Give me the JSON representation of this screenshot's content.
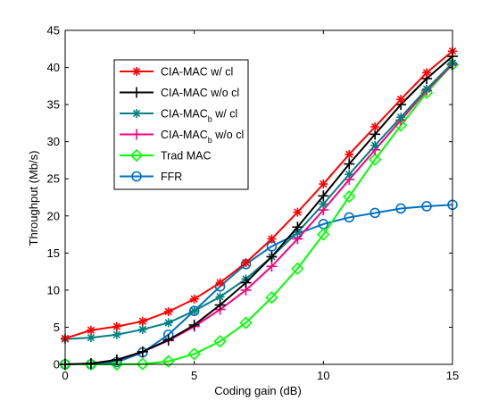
{
  "chart_data": {
    "type": "line",
    "title": "",
    "xlabel": "Coding gain (dB)",
    "ylabel": "Throughput (Mb/s)",
    "xlim": [
      0,
      15
    ],
    "ylim": [
      0,
      45
    ],
    "xticks": [
      0,
      5,
      10,
      15
    ],
    "yticks": [
      0,
      5,
      10,
      15,
      20,
      25,
      30,
      35,
      40,
      45
    ],
    "xtick_labels": [
      "0",
      "5",
      "10",
      "15"
    ],
    "ytick_labels": [
      "0",
      "5",
      "10",
      "15",
      "20",
      "25",
      "30",
      "35",
      "40",
      "45"
    ],
    "grid": false,
    "legend_position": "upper-left",
    "x": [
      0,
      1,
      2,
      3,
      4,
      5,
      6,
      7,
      8,
      9,
      10,
      11,
      12,
      13,
      14,
      15
    ],
    "series": [
      {
        "name": "CIA-MAC w/ cl",
        "legend_parts": [
          {
            "t": "CIA-MAC w/ cl"
          }
        ],
        "color": "#ff0000",
        "marker": "asterisk",
        "values": [
          3.5,
          4.6,
          5.1,
          5.8,
          7.1,
          8.8,
          11.0,
          13.7,
          16.9,
          20.5,
          24.3,
          28.3,
          32.0,
          35.7,
          39.3,
          42.2
        ]
      },
      {
        "name": "CIA-MAC w/o cl",
        "legend_parts": [
          {
            "t": "CIA-MAC w/o cl"
          }
        ],
        "color": "#000000",
        "marker": "plus",
        "values": [
          0.0,
          0.1,
          0.6,
          1.7,
          3.3,
          5.3,
          8.0,
          11.0,
          14.5,
          18.5,
          22.7,
          27.0,
          31.0,
          35.0,
          38.5,
          41.5
        ]
      },
      {
        "name": "CIA-MAC_b w/ cl",
        "legend_parts": [
          {
            "t": "CIA-MAC"
          },
          {
            "t": "b",
            "sub": true
          },
          {
            "t": " w/ cl"
          }
        ],
        "color": "#008080",
        "marker": "asterisk",
        "values": [
          3.4,
          3.6,
          4.0,
          4.7,
          5.6,
          7.2,
          9.1,
          11.5,
          14.5,
          17.8,
          21.6,
          25.6,
          29.5,
          33.3,
          37.1,
          40.6
        ]
      },
      {
        "name": "CIA-MAC_b w/o cl",
        "legend_parts": [
          {
            "t": "CIA-MAC"
          },
          {
            "t": "b",
            "sub": true
          },
          {
            "t": " w/o cl"
          }
        ],
        "color": "#ff0080",
        "marker": "plus",
        "values": [
          0.0,
          0.1,
          0.6,
          1.7,
          3.2,
          5.1,
          7.4,
          10.0,
          13.2,
          16.9,
          20.8,
          24.9,
          28.9,
          32.9,
          36.9,
          40.4
        ]
      },
      {
        "name": "Trad MAC",
        "legend_parts": [
          {
            "t": "Trad MAC"
          }
        ],
        "color": "#00ff00",
        "marker": "diamond",
        "values": [
          0.0,
          0.0,
          0.0,
          0.05,
          0.4,
          1.4,
          3.1,
          5.6,
          9.0,
          12.9,
          17.5,
          22.6,
          27.6,
          32.2,
          36.6,
          40.4
        ]
      },
      {
        "name": "FFR",
        "legend_parts": [
          {
            "t": "FFR"
          }
        ],
        "color": "#0070c0",
        "marker": "circle",
        "values": [
          0.0,
          0.0,
          0.3,
          1.6,
          4.0,
          7.2,
          10.5,
          13.5,
          15.9,
          17.6,
          18.9,
          19.8,
          20.4,
          21.0,
          21.3,
          21.5
        ]
      }
    ]
  }
}
